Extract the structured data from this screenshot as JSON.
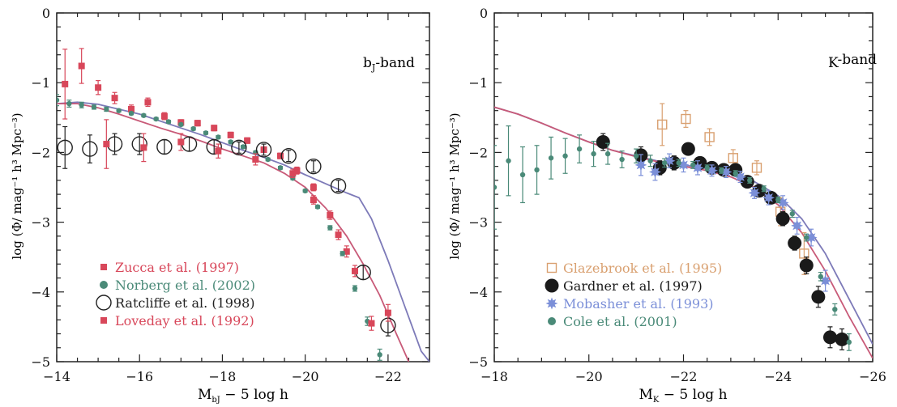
{
  "chart_data": [
    {
      "type": "scatter",
      "band_label": "b",
      "band_sub": "J",
      "band_label_suffix": "-band",
      "xlabel_main": "M",
      "xlabel_sub": "bJ",
      "xlabel_tail": " − 5 log h",
      "ylabel": "log (Φ/ mag⁻¹ h³ Mpc⁻³)",
      "xlim": [
        -14,
        -23
      ],
      "ylim": [
        -5,
        0
      ],
      "xticks": [
        -14,
        -16,
        -18,
        -20,
        -22
      ],
      "xtick_labels": [
        "−14",
        "−16",
        "−18",
        "−20",
        "−22"
      ],
      "yticks": [
        0,
        -1,
        -2,
        -3,
        -4,
        -5
      ],
      "ytick_labels": [
        "0",
        "−1",
        "−2",
        "−3",
        "−4",
        "−5"
      ],
      "legend_position": "bottom-left",
      "series": [
        {
          "name": "Zucca et al. (1997)",
          "marker": "square",
          "color": "#d8475a",
          "x": [
            -14.2,
            -14.6,
            -15.0,
            -15.4,
            -15.8,
            -16.2,
            -16.6,
            -17.0,
            -17.4,
            -17.8,
            -18.2,
            -18.6,
            -19.0,
            -19.4,
            -19.8,
            -20.2,
            -20.6,
            -21.0
          ],
          "y": [
            -1.02,
            -0.76,
            -1.07,
            -1.22,
            -1.38,
            -1.28,
            -1.48,
            -1.57,
            -1.58,
            -1.65,
            -1.75,
            -1.83,
            -1.96,
            -2.05,
            -2.26,
            -2.5,
            -2.9,
            -3.42
          ],
          "err": [
            0.5,
            0.25,
            0.1,
            0.08,
            0.06,
            0.06,
            0.05,
            0.04,
            0.04,
            0.04,
            0.04,
            0.04,
            0.04,
            0.04,
            0.05,
            0.05,
            0.06,
            0.08
          ]
        },
        {
          "name": "Norberg et al. (2002)",
          "marker": "circle",
          "color": "#4a8a78",
          "x": [
            -14.0,
            -14.3,
            -14.6,
            -14.9,
            -15.2,
            -15.5,
            -15.8,
            -16.1,
            -16.4,
            -16.7,
            -17.0,
            -17.3,
            -17.6,
            -17.9,
            -18.2,
            -18.5,
            -18.8,
            -19.1,
            -19.4,
            -19.7,
            -20.0,
            -20.3,
            -20.6,
            -20.9,
            -21.2,
            -21.5,
            -21.8
          ],
          "y": [
            -1.25,
            -1.3,
            -1.32,
            -1.35,
            -1.38,
            -1.4,
            -1.44,
            -1.47,
            -1.52,
            -1.56,
            -1.6,
            -1.66,
            -1.72,
            -1.78,
            -1.85,
            -1.92,
            -2.0,
            -2.1,
            -2.22,
            -2.37,
            -2.55,
            -2.78,
            -3.08,
            -3.45,
            -3.95,
            -4.42,
            -4.9
          ],
          "err": [
            0.08,
            0.05,
            0.04,
            0.03,
            0.03,
            0.02,
            0.02,
            0.02,
            0.02,
            0.02,
            0.02,
            0.02,
            0.02,
            0.02,
            0.02,
            0.02,
            0.02,
            0.02,
            0.02,
            0.02,
            0.02,
            0.02,
            0.03,
            0.03,
            0.04,
            0.06,
            0.08
          ]
        },
        {
          "name": "Ratcliffe et al. (1998)",
          "marker": "open-circle",
          "color": "#222222",
          "x": [
            -14.2,
            -14.8,
            -15.4,
            -16.0,
            -16.6,
            -17.2,
            -17.8,
            -18.4,
            -19.0,
            -19.6,
            -20.2,
            -20.8,
            -21.4,
            -22.0
          ],
          "y": [
            -1.93,
            -1.95,
            -1.88,
            -1.88,
            -1.92,
            -1.88,
            -1.92,
            -1.93,
            -1.96,
            -2.05,
            -2.2,
            -2.48,
            -3.72,
            -4.48
          ],
          "err": [
            0.3,
            0.2,
            0.15,
            0.15,
            0.1,
            0.1,
            0.1,
            0.08,
            0.08,
            0.08,
            0.08,
            0.08,
            0.1,
            0.15
          ]
        },
        {
          "name": "Loveday et al. (1992)",
          "marker": "square",
          "color": "#d8475a",
          "x": [
            -15.2,
            -16.1,
            -17.0,
            -17.9,
            -18.8,
            -19.7,
            -20.2,
            -20.8,
            -21.2,
            -21.6,
            -22.0
          ],
          "y": [
            -1.88,
            -1.93,
            -1.85,
            -1.98,
            -2.1,
            -2.3,
            -2.68,
            -3.18,
            -3.7,
            -4.45,
            -4.3
          ],
          "err": [
            0.35,
            0.2,
            0.12,
            0.1,
            0.08,
            0.06,
            0.06,
            0.07,
            0.08,
            0.1,
            0.12
          ]
        }
      ],
      "curves": [
        {
          "color": "#7d7ab8",
          "x": [
            -14.0,
            -14.5,
            -15.0,
            -15.5,
            -16.0,
            -16.5,
            -17.0,
            -17.5,
            -18.0,
            -18.5,
            -19.0,
            -19.5,
            -20.0,
            -20.5,
            -21.0,
            -21.3,
            -21.6,
            -22.0,
            -22.4,
            -22.8,
            -23.0
          ],
          "y": [
            -1.3,
            -1.28,
            -1.31,
            -1.38,
            -1.45,
            -1.55,
            -1.65,
            -1.75,
            -1.86,
            -1.97,
            -2.07,
            -2.18,
            -2.32,
            -2.45,
            -2.58,
            -2.65,
            -2.95,
            -3.55,
            -4.2,
            -4.85,
            -5.0
          ]
        },
        {
          "color": "#c85a78",
          "x": [
            -14.0,
            -14.5,
            -15.0,
            -15.5,
            -16.0,
            -16.5,
            -17.0,
            -17.5,
            -18.0,
            -18.5,
            -19.0,
            -19.5,
            -20.0,
            -20.5,
            -21.0,
            -21.4,
            -21.8,
            -22.2,
            -22.5
          ],
          "y": [
            -1.3,
            -1.3,
            -1.36,
            -1.45,
            -1.55,
            -1.65,
            -1.74,
            -1.84,
            -1.95,
            -2.05,
            -2.15,
            -2.3,
            -2.5,
            -2.8,
            -3.2,
            -3.6,
            -4.05,
            -4.6,
            -5.0
          ]
        }
      ]
    },
    {
      "type": "scatter",
      "band_label": "K",
      "band_sub": "",
      "band_label_suffix": "-band",
      "xlabel_main": "M",
      "xlabel_sub": "K",
      "xlabel_tail": " − 5 log h",
      "ylabel": "log (Φ/ mag⁻¹ h³ Mpc⁻³)",
      "xlim": [
        -18,
        -26
      ],
      "ylim": [
        -5,
        0
      ],
      "xticks": [
        -18,
        -20,
        -22,
        -24,
        -26
      ],
      "xtick_labels": [
        "−18",
        "−20",
        "−22",
        "−24",
        "−26"
      ],
      "yticks": [
        0,
        -1,
        -2,
        -3,
        -4,
        -5
      ],
      "ytick_labels": [
        "0",
        "−1",
        "−2",
        "−3",
        "−4",
        "−5"
      ],
      "legend_position": "bottom-left",
      "series": [
        {
          "name": "Glazebrook et al. (1995)",
          "marker": "open-square",
          "color": "#d9a070",
          "x": [
            -21.55,
            -22.05,
            -22.55,
            -23.05,
            -23.55,
            -24.05,
            -24.55
          ],
          "y": [
            -1.6,
            -1.52,
            -1.78,
            -2.08,
            -2.22,
            -2.85,
            -3.45
          ],
          "err": [
            0.3,
            0.12,
            0.12,
            0.12,
            0.1,
            0.2,
            0.3
          ]
        },
        {
          "name": "Gardner et al. (1997)",
          "marker": "circle",
          "color": "#1a1a1a",
          "x": [
            -20.3,
            -21.1,
            -21.5,
            -21.8,
            -22.1,
            -22.35,
            -22.6,
            -22.85,
            -23.1,
            -23.35,
            -23.6,
            -23.85,
            -24.1,
            -24.35,
            -24.6,
            -24.85,
            -25.1,
            -25.35
          ],
          "y": [
            -1.85,
            -2.04,
            -2.22,
            -2.15,
            -1.95,
            -2.15,
            -2.22,
            -2.25,
            -2.25,
            -2.42,
            -2.55,
            -2.65,
            -2.95,
            -3.3,
            -3.62,
            -4.07,
            -4.65,
            -4.68
          ],
          "err": [
            0.12,
            0.12,
            0.1,
            0.1,
            0.08,
            0.08,
            0.08,
            0.08,
            0.08,
            0.08,
            0.08,
            0.08,
            0.1,
            0.1,
            0.12,
            0.15,
            0.15,
            0.15
          ]
        },
        {
          "name": "Mobasher et al. (1993)",
          "marker": "star",
          "color": "#7b8fd8",
          "x": [
            -21.1,
            -21.4,
            -21.7,
            -22.0,
            -22.3,
            -22.6,
            -22.9,
            -23.2,
            -23.5,
            -23.8,
            -24.1,
            -24.4,
            -24.7,
            -25.0
          ],
          "y": [
            -2.18,
            -2.28,
            -2.12,
            -2.18,
            -2.22,
            -2.26,
            -2.28,
            -2.35,
            -2.58,
            -2.65,
            -2.72,
            -3.05,
            -3.22,
            -3.84
          ],
          "err": [
            0.15,
            0.12,
            0.1,
            0.1,
            0.1,
            0.08,
            0.08,
            0.08,
            0.08,
            0.1,
            0.1,
            0.12,
            0.12,
            0.15
          ]
        },
        {
          "name": "Cole et al. (2001)",
          "marker": "circle",
          "color": "#4a8a78",
          "x": [
            -18.0,
            -18.3,
            -18.6,
            -18.9,
            -19.2,
            -19.5,
            -19.8,
            -20.1,
            -20.4,
            -20.7,
            -21.0,
            -21.3,
            -21.6,
            -21.9,
            -22.2,
            -22.5,
            -22.8,
            -23.1,
            -23.4,
            -23.7,
            -24.0,
            -24.3,
            -24.6,
            -24.9,
            -25.2,
            -25.5
          ],
          "y": [
            -2.5,
            -2.12,
            -2.32,
            -2.25,
            -2.08,
            -2.05,
            -1.95,
            -2.02,
            -2.02,
            -2.1,
            -2.05,
            -2.12,
            -2.15,
            -2.15,
            -2.18,
            -2.22,
            -2.26,
            -2.3,
            -2.4,
            -2.52,
            -2.68,
            -2.88,
            -3.22,
            -3.78,
            -4.25,
            -4.72
          ],
          "err": [
            0.6,
            0.5,
            0.4,
            0.35,
            0.3,
            0.25,
            0.2,
            0.18,
            0.15,
            0.12,
            0.1,
            0.08,
            0.06,
            0.05,
            0.05,
            0.04,
            0.04,
            0.04,
            0.04,
            0.04,
            0.04,
            0.05,
            0.05,
            0.06,
            0.08,
            0.12
          ]
        }
      ],
      "curves": [
        {
          "color": "#7d7ab8",
          "x": [
            -18.0,
            -18.5,
            -19.0,
            -19.5,
            -20.0,
            -20.5,
            -21.0,
            -21.5,
            -22.0,
            -22.5,
            -23.0,
            -23.5,
            -24.0,
            -24.5,
            -25.0,
            -25.5,
            -26.0
          ],
          "y": [
            -1.35,
            -1.45,
            -1.58,
            -1.72,
            -1.85,
            -1.97,
            -2.05,
            -2.13,
            -2.18,
            -2.23,
            -2.3,
            -2.42,
            -2.62,
            -2.95,
            -3.45,
            -4.1,
            -4.75
          ]
        },
        {
          "color": "#c85a78",
          "x": [
            -18.0,
            -18.5,
            -19.0,
            -19.5,
            -20.0,
            -20.5,
            -21.0,
            -21.5,
            -22.0,
            -22.5,
            -23.0,
            -23.5,
            -24.0,
            -24.5,
            -25.0,
            -25.5,
            -26.0
          ],
          "y": [
            -1.35,
            -1.45,
            -1.58,
            -1.72,
            -1.85,
            -1.97,
            -2.06,
            -2.14,
            -2.2,
            -2.26,
            -2.35,
            -2.5,
            -2.75,
            -3.15,
            -3.7,
            -4.35,
            -4.95
          ]
        }
      ]
    }
  ]
}
